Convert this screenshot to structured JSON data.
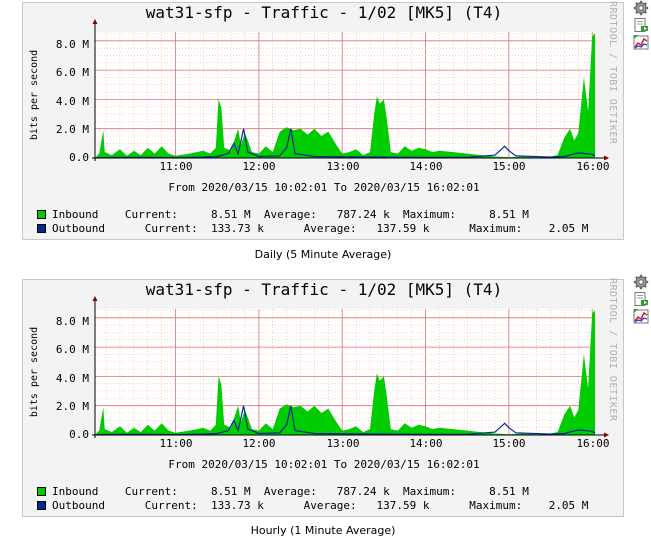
{
  "colors": {
    "inbound": "#00cc00",
    "outbound": "#002a97",
    "grid_minor": "#f2a0a0",
    "grid_major": "#e07070",
    "panel_bg": "#f3f3f3",
    "plot_bg": "#ffffff",
    "watermark": "#b0b0b0"
  },
  "icons": [
    "gear-icon",
    "export-icon",
    "zoom-graph-icon"
  ],
  "graphs": [
    {
      "title": "wat31-sfp - Traffic - 1/02 [MK5] (T4)",
      "ylabel": "bits per second",
      "watermark": "RRDTOOL / TOBI OETIKER",
      "yticks": [
        "8.0 M",
        "6.0 M",
        "4.0 M",
        "2.0 M",
        "0.0"
      ],
      "xticks": [
        "11:00",
        "12:00",
        "13:00",
        "14:00",
        "15:00",
        "16:00"
      ],
      "date_range": "From 2020/03/15 10:02:01 To 2020/03/15 16:02:01",
      "legend": {
        "inbound": "Inbound    Current:     8.51 M  Average:   787.24 k  Maximum:     8.51 M",
        "outbound": "Outbound      Current:  133.73 k      Average:   137.59 k      Maximum:    2.05 M"
      },
      "caption": "Daily (5 Minute Average)"
    },
    {
      "title": "wat31-sfp - Traffic - 1/02 [MK5] (T4)",
      "ylabel": "bits per second",
      "watermark": "RRDTOOL / TOBI OETIKER",
      "yticks": [
        "8.0 M",
        "6.0 M",
        "4.0 M",
        "2.0 M",
        "0.0"
      ],
      "xticks": [
        "11:00",
        "12:00",
        "13:00",
        "14:00",
        "15:00",
        "16:00"
      ],
      "date_range": "From 2020/03/15 10:02:01 To 2020/03/15 16:02:01",
      "legend": {
        "inbound": "Inbound    Current:     8.51 M  Average:   787.24 k  Maximum:     8.51 M",
        "outbound": "Outbound      Current:  133.73 k      Average:   137.59 k      Maximum:    2.05 M"
      },
      "caption": "Hourly (1 Minute Average)"
    }
  ],
  "chart_data": [
    {
      "type": "area",
      "ylim": [
        0,
        8600000
      ],
      "x_range": [
        "10:02",
        "16:02"
      ],
      "grid": true,
      "series": [
        {
          "name": "Inbound",
          "points": [
            [
              "10:02",
              0
            ],
            [
              "10:05",
              300000
            ],
            [
              "10:08",
              1900000
            ],
            [
              "10:09",
              400000
            ],
            [
              "10:14",
              200000
            ],
            [
              "10:20",
              600000
            ],
            [
              "10:25",
              150000
            ],
            [
              "10:30",
              500000
            ],
            [
              "10:35",
              200000
            ],
            [
              "10:40",
              700000
            ],
            [
              "10:45",
              300000
            ],
            [
              "10:50",
              800000
            ],
            [
              "10:55",
              300000
            ],
            [
              "11:00",
              150000
            ],
            [
              "11:10",
              300000
            ],
            [
              "11:20",
              500000
            ],
            [
              "11:25",
              300000
            ],
            [
              "11:29",
              700000
            ],
            [
              "11:31",
              4000000
            ],
            [
              "11:33",
              3400000
            ],
            [
              "11:35",
              700000
            ],
            [
              "11:40",
              500000
            ],
            [
              "11:43",
              1400000
            ],
            [
              "11:45",
              2000000
            ],
            [
              "11:47",
              900000
            ],
            [
              "11:50",
              1700000
            ],
            [
              "11:52",
              1200000
            ],
            [
              "11:55",
              400000
            ],
            [
              "12:00",
              300000
            ],
            [
              "12:05",
              800000
            ],
            [
              "12:10",
              400000
            ],
            [
              "12:15",
              1800000
            ],
            [
              "12:20",
              2100000
            ],
            [
              "12:25",
              1900000
            ],
            [
              "12:30",
              2000000
            ],
            [
              "12:35",
              1600000
            ],
            [
              "12:40",
              2000000
            ],
            [
              "12:45",
              1500000
            ],
            [
              "12:50",
              1800000
            ],
            [
              "12:55",
              1000000
            ],
            [
              "13:00",
              300000
            ],
            [
              "13:05",
              400000
            ],
            [
              "13:10",
              600000
            ],
            [
              "13:15",
              200000
            ],
            [
              "13:20",
              400000
            ],
            [
              "13:23",
              3000000
            ],
            [
              "13:25",
              4200000
            ],
            [
              "13:27",
              3700000
            ],
            [
              "13:30",
              4000000
            ],
            [
              "13:32",
              2700000
            ],
            [
              "13:35",
              400000
            ],
            [
              "13:40",
              300000
            ],
            [
              "13:45",
              800000
            ],
            [
              "13:50",
              500000
            ],
            [
              "13:55",
              700000
            ],
            [
              "14:00",
              600000
            ],
            [
              "14:05",
              400000
            ],
            [
              "14:10",
              500000
            ],
            [
              "14:20",
              400000
            ],
            [
              "14:30",
              300000
            ],
            [
              "14:40",
              200000
            ],
            [
              "14:50",
              100000
            ],
            [
              "15:00",
              50000
            ],
            [
              "15:10",
              100000
            ],
            [
              "15:20",
              50000
            ],
            [
              "15:30",
              100000
            ],
            [
              "15:35",
              200000
            ],
            [
              "15:40",
              1400000
            ],
            [
              "15:44",
              2000000
            ],
            [
              "15:47",
              1200000
            ],
            [
              "15:50",
              1700000
            ],
            [
              "15:54",
              5500000
            ],
            [
              "15:57",
              3200000
            ],
            [
              "16:00",
              8300000
            ],
            [
              "16:02",
              8510000
            ]
          ]
        },
        {
          "name": "Outbound",
          "points": [
            [
              "10:02",
              20000
            ],
            [
              "10:20",
              50000
            ],
            [
              "10:40",
              40000
            ],
            [
              "11:00",
              30000
            ],
            [
              "11:20",
              60000
            ],
            [
              "11:30",
              100000
            ],
            [
              "11:38",
              300000
            ],
            [
              "11:42",
              1000000
            ],
            [
              "11:45",
              300000
            ],
            [
              "11:49",
              2000000
            ],
            [
              "11:52",
              400000
            ],
            [
              "12:00",
              100000
            ],
            [
              "12:15",
              150000
            ],
            [
              "12:20",
              700000
            ],
            [
              "12:23",
              2000000
            ],
            [
              "12:26",
              300000
            ],
            [
              "12:40",
              100000
            ],
            [
              "13:00",
              80000
            ],
            [
              "13:30",
              60000
            ],
            [
              "14:00",
              50000
            ],
            [
              "14:30",
              50000
            ],
            [
              "14:50",
              200000
            ],
            [
              "14:57",
              800000
            ],
            [
              "15:00",
              500000
            ],
            [
              "15:05",
              150000
            ],
            [
              "15:30",
              60000
            ],
            [
              "15:40",
              100000
            ],
            [
              "15:50",
              350000
            ],
            [
              "16:00",
              250000
            ],
            [
              "16:02",
              133730
            ]
          ]
        }
      ]
    },
    {
      "type": "area",
      "ylim": [
        0,
        8600000
      ],
      "x_range": [
        "10:02",
        "16:02"
      ],
      "grid": true,
      "series": [
        {
          "name": "Inbound",
          "points": [
            [
              "10:02",
              0
            ],
            [
              "10:05",
              300000
            ],
            [
              "10:08",
              1900000
            ],
            [
              "10:09",
              400000
            ],
            [
              "10:14",
              200000
            ],
            [
              "10:20",
              600000
            ],
            [
              "10:25",
              150000
            ],
            [
              "10:30",
              500000
            ],
            [
              "10:35",
              200000
            ],
            [
              "10:40",
              700000
            ],
            [
              "10:45",
              300000
            ],
            [
              "10:50",
              800000
            ],
            [
              "10:55",
              300000
            ],
            [
              "11:00",
              150000
            ],
            [
              "11:10",
              300000
            ],
            [
              "11:20",
              500000
            ],
            [
              "11:25",
              300000
            ],
            [
              "11:29",
              700000
            ],
            [
              "11:31",
              4000000
            ],
            [
              "11:33",
              3400000
            ],
            [
              "11:35",
              700000
            ],
            [
              "11:40",
              500000
            ],
            [
              "11:43",
              1400000
            ],
            [
              "11:45",
              2000000
            ],
            [
              "11:47",
              900000
            ],
            [
              "11:50",
              1700000
            ],
            [
              "11:52",
              1200000
            ],
            [
              "11:55",
              400000
            ],
            [
              "12:00",
              300000
            ],
            [
              "12:05",
              800000
            ],
            [
              "12:10",
              400000
            ],
            [
              "12:15",
              1800000
            ],
            [
              "12:20",
              2100000
            ],
            [
              "12:25",
              1900000
            ],
            [
              "12:30",
              2000000
            ],
            [
              "12:35",
              1600000
            ],
            [
              "12:40",
              2000000
            ],
            [
              "12:45",
              1500000
            ],
            [
              "12:50",
              1800000
            ],
            [
              "12:55",
              1000000
            ],
            [
              "13:00",
              300000
            ],
            [
              "13:05",
              400000
            ],
            [
              "13:10",
              600000
            ],
            [
              "13:15",
              200000
            ],
            [
              "13:20",
              400000
            ],
            [
              "13:23",
              3000000
            ],
            [
              "13:25",
              4200000
            ],
            [
              "13:27",
              3700000
            ],
            [
              "13:30",
              4000000
            ],
            [
              "13:32",
              2700000
            ],
            [
              "13:35",
              400000
            ],
            [
              "13:40",
              300000
            ],
            [
              "13:45",
              800000
            ],
            [
              "13:50",
              500000
            ],
            [
              "13:55",
              700000
            ],
            [
              "14:00",
              600000
            ],
            [
              "14:05",
              400000
            ],
            [
              "14:10",
              500000
            ],
            [
              "14:20",
              400000
            ],
            [
              "14:30",
              300000
            ],
            [
              "14:40",
              200000
            ],
            [
              "14:50",
              100000
            ],
            [
              "15:00",
              50000
            ],
            [
              "15:10",
              100000
            ],
            [
              "15:20",
              50000
            ],
            [
              "15:30",
              100000
            ],
            [
              "15:35",
              200000
            ],
            [
              "15:40",
              1400000
            ],
            [
              "15:44",
              2000000
            ],
            [
              "15:47",
              1200000
            ],
            [
              "15:50",
              1700000
            ],
            [
              "15:54",
              5500000
            ],
            [
              "15:57",
              3200000
            ],
            [
              "16:00",
              8300000
            ],
            [
              "16:02",
              8510000
            ]
          ]
        },
        {
          "name": "Outbound",
          "points": [
            [
              "10:02",
              20000
            ],
            [
              "10:20",
              50000
            ],
            [
              "10:40",
              40000
            ],
            [
              "11:00",
              30000
            ],
            [
              "11:20",
              60000
            ],
            [
              "11:30",
              100000
            ],
            [
              "11:38",
              300000
            ],
            [
              "11:42",
              1000000
            ],
            [
              "11:45",
              300000
            ],
            [
              "11:49",
              2000000
            ],
            [
              "11:52",
              400000
            ],
            [
              "12:00",
              100000
            ],
            [
              "12:15",
              150000
            ],
            [
              "12:20",
              700000
            ],
            [
              "12:23",
              2000000
            ],
            [
              "12:26",
              300000
            ],
            [
              "12:40",
              100000
            ],
            [
              "13:00",
              80000
            ],
            [
              "13:30",
              60000
            ],
            [
              "14:00",
              50000
            ],
            [
              "14:30",
              50000
            ],
            [
              "14:50",
              200000
            ],
            [
              "14:57",
              800000
            ],
            [
              "15:00",
              500000
            ],
            [
              "15:05",
              150000
            ],
            [
              "15:30",
              60000
            ],
            [
              "15:40",
              100000
            ],
            [
              "15:50",
              350000
            ],
            [
              "16:00",
              250000
            ],
            [
              "16:02",
              133730
            ]
          ]
        }
      ]
    }
  ]
}
